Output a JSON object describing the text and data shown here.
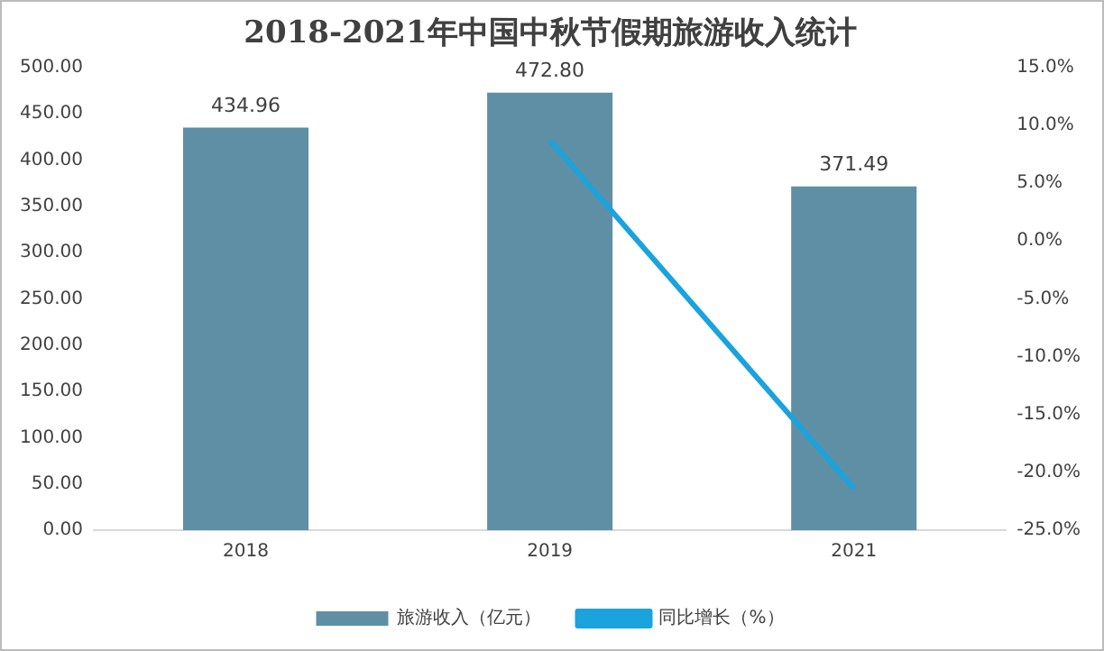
{
  "chart_data": {
    "type": "bar",
    "title": "2018-2021年中国中秋节假期旅游收入统计",
    "categories": [
      "2018",
      "2019",
      "2021"
    ],
    "series": [
      {
        "name": "旅游收入（亿元）",
        "color": "#5f8fa5",
        "values": [
          434.96,
          472.8,
          371.49
        ],
        "value_labels": [
          "434.96",
          "472.80",
          "371.49"
        ]
      },
      {
        "name": "同比增长（%）",
        "type": "line",
        "axis": "y2",
        "color": "#1aa3dc",
        "values": [
          null,
          8.7,
          -21.4
        ]
      }
    ],
    "ylim": [
      0,
      500
    ],
    "yticks": [
      {
        "value": 0,
        "label": "0.00"
      },
      {
        "value": 50,
        "label": "50.00"
      },
      {
        "value": 100,
        "label": "100.00"
      },
      {
        "value": 150,
        "label": "150.00"
      },
      {
        "value": 200,
        "label": "200.00"
      },
      {
        "value": 250,
        "label": "250.00"
      },
      {
        "value": 300,
        "label": "300.00"
      },
      {
        "value": 350,
        "label": "350.00"
      },
      {
        "value": 400,
        "label": "400.00"
      },
      {
        "value": 450,
        "label": "450.00"
      },
      {
        "value": 500,
        "label": "500.00"
      }
    ],
    "y2lim": [
      -25,
      15
    ],
    "y2ticks": [
      {
        "value": -25,
        "label": "-25.0%"
      },
      {
        "value": -20,
        "label": "-20.0%"
      },
      {
        "value": -15,
        "label": "-15.0%"
      },
      {
        "value": -10,
        "label": "-10.0%"
      },
      {
        "value": -5,
        "label": "-5.0%"
      },
      {
        "value": 0,
        "label": "0.0%"
      },
      {
        "value": 5,
        "label": "5.0%"
      },
      {
        "value": 10,
        "label": "10.0%"
      },
      {
        "value": 15,
        "label": "15.0%"
      }
    ],
    "grid": false,
    "legend": "bottom",
    "marker": "none"
  }
}
